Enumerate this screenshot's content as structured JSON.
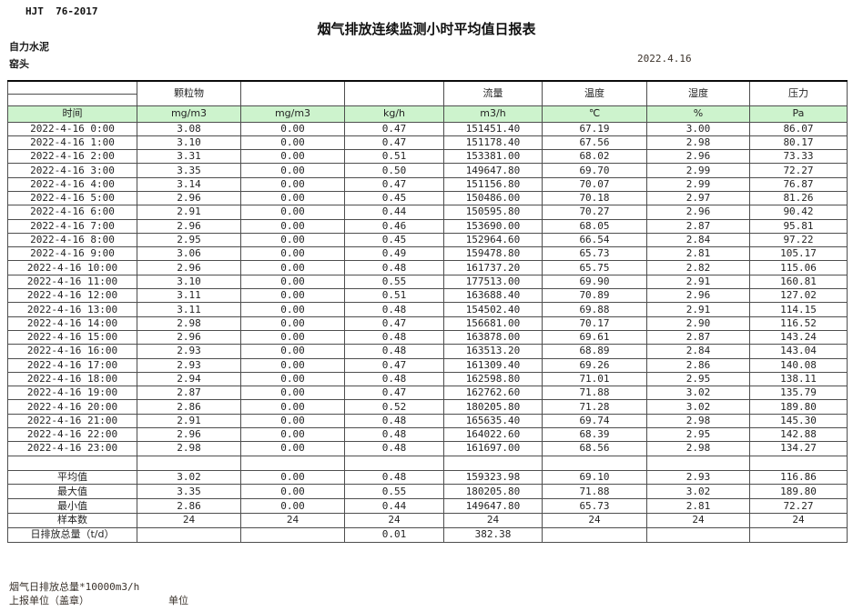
{
  "header": {
    "doc_code": "HJT  76-2017",
    "title": "烟气排放连续监测小时平均值日报表",
    "company": "自力水泥",
    "location": "窑头",
    "date": "2022.4.16"
  },
  "colors": {
    "header_row_green": "#cdf3cd",
    "grid_line": "#4e4e4e",
    "number_text": "#4a3c32"
  },
  "table": {
    "group_headers": [
      "",
      "颗粒物",
      "",
      "",
      "流量",
      "温度",
      "湿度",
      "压力"
    ],
    "units": [
      "时间",
      "mg/m3",
      "mg/m3",
      "kg/h",
      "m3/h",
      "℃",
      "%",
      "Pa"
    ],
    "rows": [
      {
        "time": "2022-4-16 0:00",
        "values": [
          "3.08",
          "0.00",
          "0.47",
          "151451.40",
          "67.19",
          "3.00",
          "86.07"
        ]
      },
      {
        "time": "2022-4-16 1:00",
        "values": [
          "3.10",
          "0.00",
          "0.47",
          "151178.40",
          "67.56",
          "2.98",
          "80.17"
        ]
      },
      {
        "time": "2022-4-16 2:00",
        "values": [
          "3.31",
          "0.00",
          "0.51",
          "153381.00",
          "68.02",
          "2.96",
          "73.33"
        ]
      },
      {
        "time": "2022-4-16 3:00",
        "values": [
          "3.35",
          "0.00",
          "0.50",
          "149647.80",
          "69.70",
          "2.99",
          "72.27"
        ]
      },
      {
        "time": "2022-4-16 4:00",
        "values": [
          "3.14",
          "0.00",
          "0.47",
          "151156.80",
          "70.07",
          "2.99",
          "76.87"
        ]
      },
      {
        "time": "2022-4-16 5:00",
        "values": [
          "2.96",
          "0.00",
          "0.45",
          "150486.00",
          "70.18",
          "2.97",
          "81.26"
        ]
      },
      {
        "time": "2022-4-16 6:00",
        "values": [
          "2.91",
          "0.00",
          "0.44",
          "150595.80",
          "70.27",
          "2.96",
          "90.42"
        ]
      },
      {
        "time": "2022-4-16 7:00",
        "values": [
          "2.96",
          "0.00",
          "0.46",
          "153690.00",
          "68.05",
          "2.87",
          "95.81"
        ]
      },
      {
        "time": "2022-4-16 8:00",
        "values": [
          "2.95",
          "0.00",
          "0.45",
          "152964.60",
          "66.54",
          "2.84",
          "97.22"
        ]
      },
      {
        "time": "2022-4-16 9:00",
        "values": [
          "3.06",
          "0.00",
          "0.49",
          "159478.80",
          "65.73",
          "2.81",
          "105.17"
        ]
      },
      {
        "time": "2022-4-16 10:00",
        "values": [
          "2.96",
          "0.00",
          "0.48",
          "161737.20",
          "65.75",
          "2.82",
          "115.06"
        ]
      },
      {
        "time": "2022-4-16 11:00",
        "values": [
          "3.10",
          "0.00",
          "0.55",
          "177513.00",
          "69.90",
          "2.91",
          "160.81"
        ]
      },
      {
        "time": "2022-4-16 12:00",
        "values": [
          "3.11",
          "0.00",
          "0.51",
          "163688.40",
          "70.89",
          "2.96",
          "127.02"
        ]
      },
      {
        "time": "2022-4-16 13:00",
        "values": [
          "3.11",
          "0.00",
          "0.48",
          "154502.40",
          "69.88",
          "2.91",
          "114.15"
        ]
      },
      {
        "time": "2022-4-16 14:00",
        "values": [
          "2.98",
          "0.00",
          "0.47",
          "156681.00",
          "70.17",
          "2.90",
          "116.52"
        ]
      },
      {
        "time": "2022-4-16 15:00",
        "values": [
          "2.96",
          "0.00",
          "0.48",
          "163878.00",
          "69.61",
          "2.87",
          "143.24"
        ]
      },
      {
        "time": "2022-4-16 16:00",
        "values": [
          "2.93",
          "0.00",
          "0.48",
          "163513.20",
          "68.89",
          "2.84",
          "143.04"
        ]
      },
      {
        "time": "2022-4-16 17:00",
        "values": [
          "2.93",
          "0.00",
          "0.47",
          "161309.40",
          "69.26",
          "2.86",
          "140.08"
        ]
      },
      {
        "time": "2022-4-16 18:00",
        "values": [
          "2.94",
          "0.00",
          "0.48",
          "162598.80",
          "71.01",
          "2.95",
          "138.11"
        ]
      },
      {
        "time": "2022-4-16 19:00",
        "values": [
          "2.87",
          "0.00",
          "0.47",
          "162762.60",
          "71.88",
          "3.02",
          "135.79"
        ]
      },
      {
        "time": "2022-4-16 20:00",
        "values": [
          "2.86",
          "0.00",
          "0.52",
          "180205.80",
          "71.28",
          "3.02",
          "189.80"
        ]
      },
      {
        "time": "2022-4-16 21:00",
        "values": [
          "2.91",
          "0.00",
          "0.48",
          "165635.40",
          "69.74",
          "2.98",
          "145.30"
        ]
      },
      {
        "time": "2022-4-16 22:00",
        "values": [
          "2.96",
          "0.00",
          "0.48",
          "164022.60",
          "68.39",
          "2.95",
          "142.88"
        ]
      },
      {
        "time": "2022-4-16 23:00",
        "values": [
          "2.98",
          "0.00",
          "0.48",
          "161697.00",
          "68.56",
          "2.98",
          "134.27"
        ]
      }
    ],
    "summary": [
      {
        "label": "平均值",
        "values": [
          "3.02",
          "0.00",
          "0.48",
          "159323.98",
          "69.10",
          "2.93",
          "116.86"
        ]
      },
      {
        "label": "最大值",
        "values": [
          "3.35",
          "0.00",
          "0.55",
          "180205.80",
          "71.88",
          "3.02",
          "189.80"
        ]
      },
      {
        "label": "最小值",
        "values": [
          "2.86",
          "0.00",
          "0.44",
          "149647.80",
          "65.73",
          "2.81",
          "72.27"
        ]
      },
      {
        "label": "样本数",
        "values": [
          "24",
          "24",
          "24",
          "24",
          "24",
          "24",
          "24"
        ]
      },
      {
        "label": "日排放总量（t/d）",
        "values": [
          "",
          "",
          "0.01",
          "382.38",
          "",
          "",
          ""
        ]
      }
    ]
  },
  "footer": {
    "note": "烟气日排放总量*10000m3/h",
    "report_unit": "上报单位（盖章）",
    "unit_label": "单位"
  }
}
